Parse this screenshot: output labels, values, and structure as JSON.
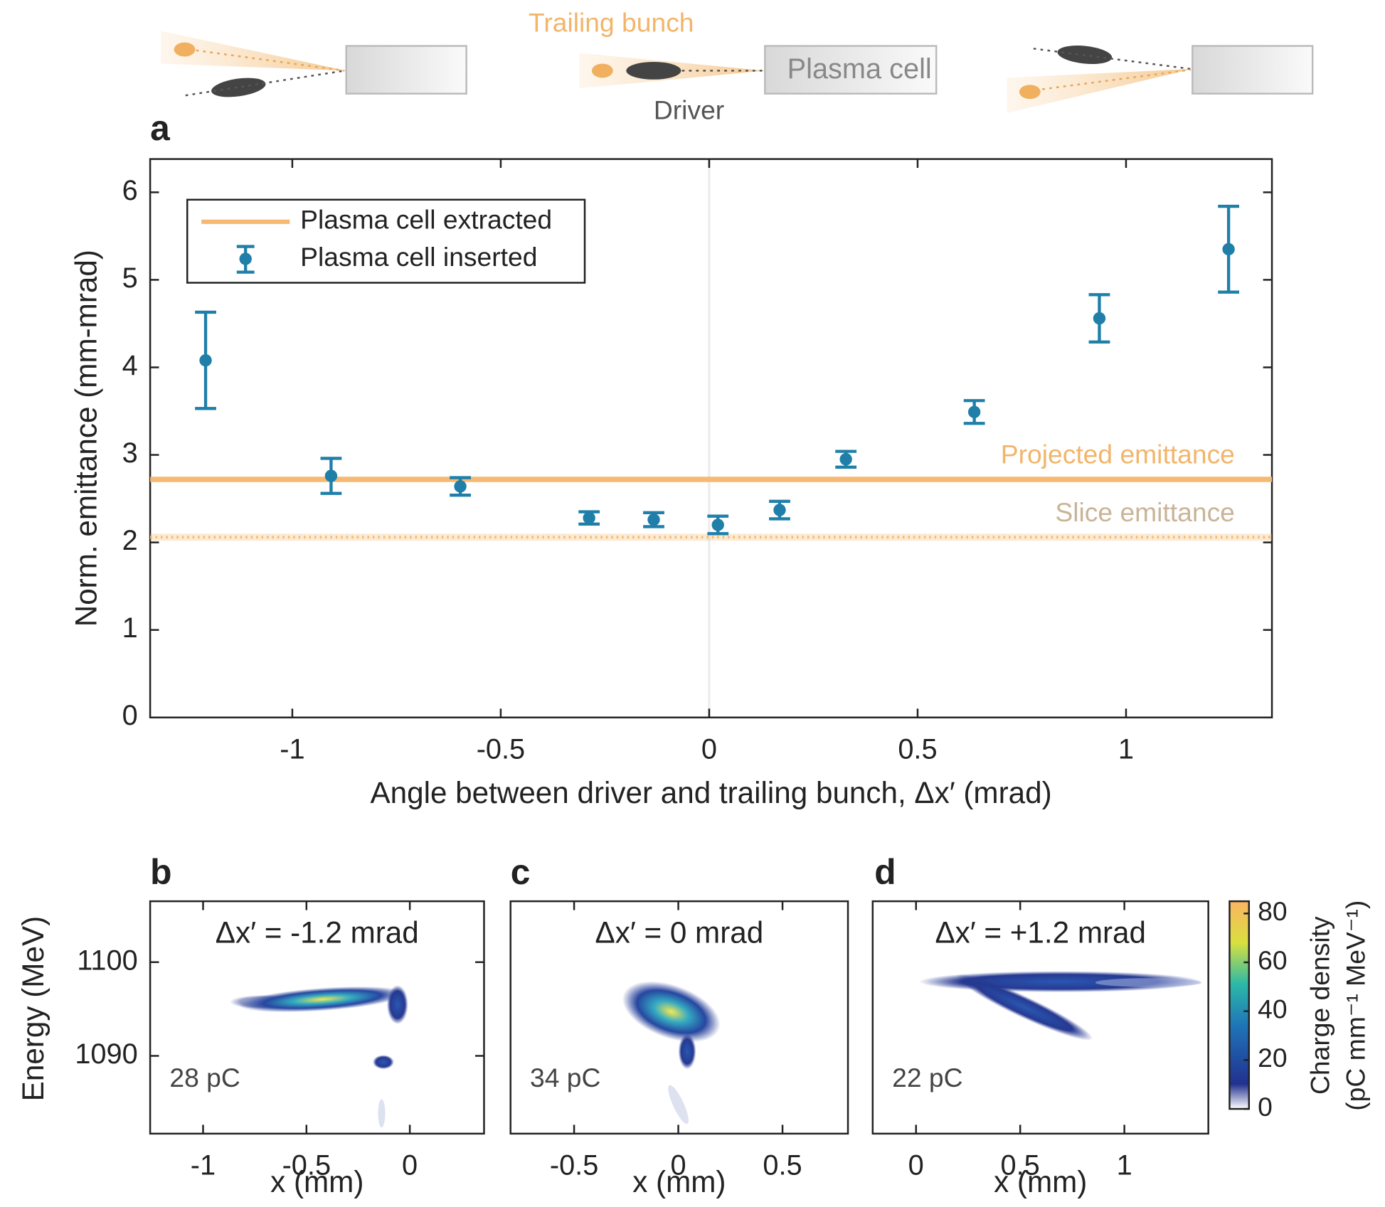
{
  "schematic": {
    "trailing": "Trailing bunch",
    "cell": "Plasma cell",
    "driver": "Driver"
  },
  "chart_data": [
    {
      "type": "errorbar",
      "panel": "a",
      "xlabel": "Angle between driver and trailing bunch, Δx′ (mrad)",
      "ylabel": "Norm. emittance (mm-mrad)",
      "xlim": [
        -1.341,
        1.35
      ],
      "ylim": [
        0,
        6.38
      ],
      "xticks": [
        -1,
        -0.5,
        0,
        0.5,
        1
      ],
      "yticks": [
        0,
        1,
        2,
        3,
        4,
        5,
        6
      ],
      "series": [
        {
          "name": "Plasma cell extracted",
          "color": "#f5b971",
          "hlines": [
            {
              "label": "Projected emittance",
              "value": 2.72,
              "style": "solid",
              "label_color": "#f2b56a"
            },
            {
              "label": "Slice emittance",
              "value": 2.06,
              "style": "dotted",
              "label_color": "#c9b497"
            }
          ]
        },
        {
          "name": "Plasma cell inserted",
          "color": "#1f7fa9",
          "x": [
            -1.208,
            -0.907,
            -0.597,
            -0.288,
            -0.133,
            0.021,
            0.169,
            0.328,
            0.636,
            0.936,
            1.246
          ],
          "values": [
            4.08,
            2.76,
            2.64,
            2.28,
            2.26,
            2.2,
            2.37,
            2.95,
            3.49,
            4.56,
            5.35
          ],
          "errors": [
            0.55,
            0.2,
            0.1,
            0.07,
            0.08,
            0.1,
            0.1,
            0.09,
            0.13,
            0.27,
            0.49
          ]
        }
      ]
    },
    {
      "type": "heatmap",
      "panel": "b",
      "annotation": "Δx′ = -1.2 mrad",
      "charge": "28 pC",
      "xlabel": "x (mm)",
      "ylabel": "Energy (MeV)",
      "xlim": [
        -1.256,
        0.359
      ],
      "ylim": [
        1081.7,
        1106.5
      ],
      "xticks": [
        -1,
        -0.5,
        0
      ],
      "yticks": [
        1090,
        1100
      ]
    },
    {
      "type": "heatmap",
      "panel": "c",
      "annotation": "Δx′ = 0 mrad",
      "charge": "34 pC",
      "xlabel": "x (mm)",
      "xlim": [
        -0.805,
        0.814
      ],
      "xticks": [
        -0.5,
        0,
        0.5
      ]
    },
    {
      "type": "heatmap",
      "panel": "d",
      "annotation": "Δx′ = +1.2 mrad",
      "charge": "22 pC",
      "xlabel": "x (mm)",
      "xlim": [
        -0.208,
        1.403
      ],
      "xticks": [
        0,
        0.5,
        1
      ],
      "colorbar": {
        "label": [
          "Charge density",
          "(pC mm⁻¹ MeV⁻¹)"
        ],
        "lim": [
          0,
          85
        ],
        "ticks": [
          0,
          20,
          40,
          60,
          80
        ]
      }
    }
  ]
}
